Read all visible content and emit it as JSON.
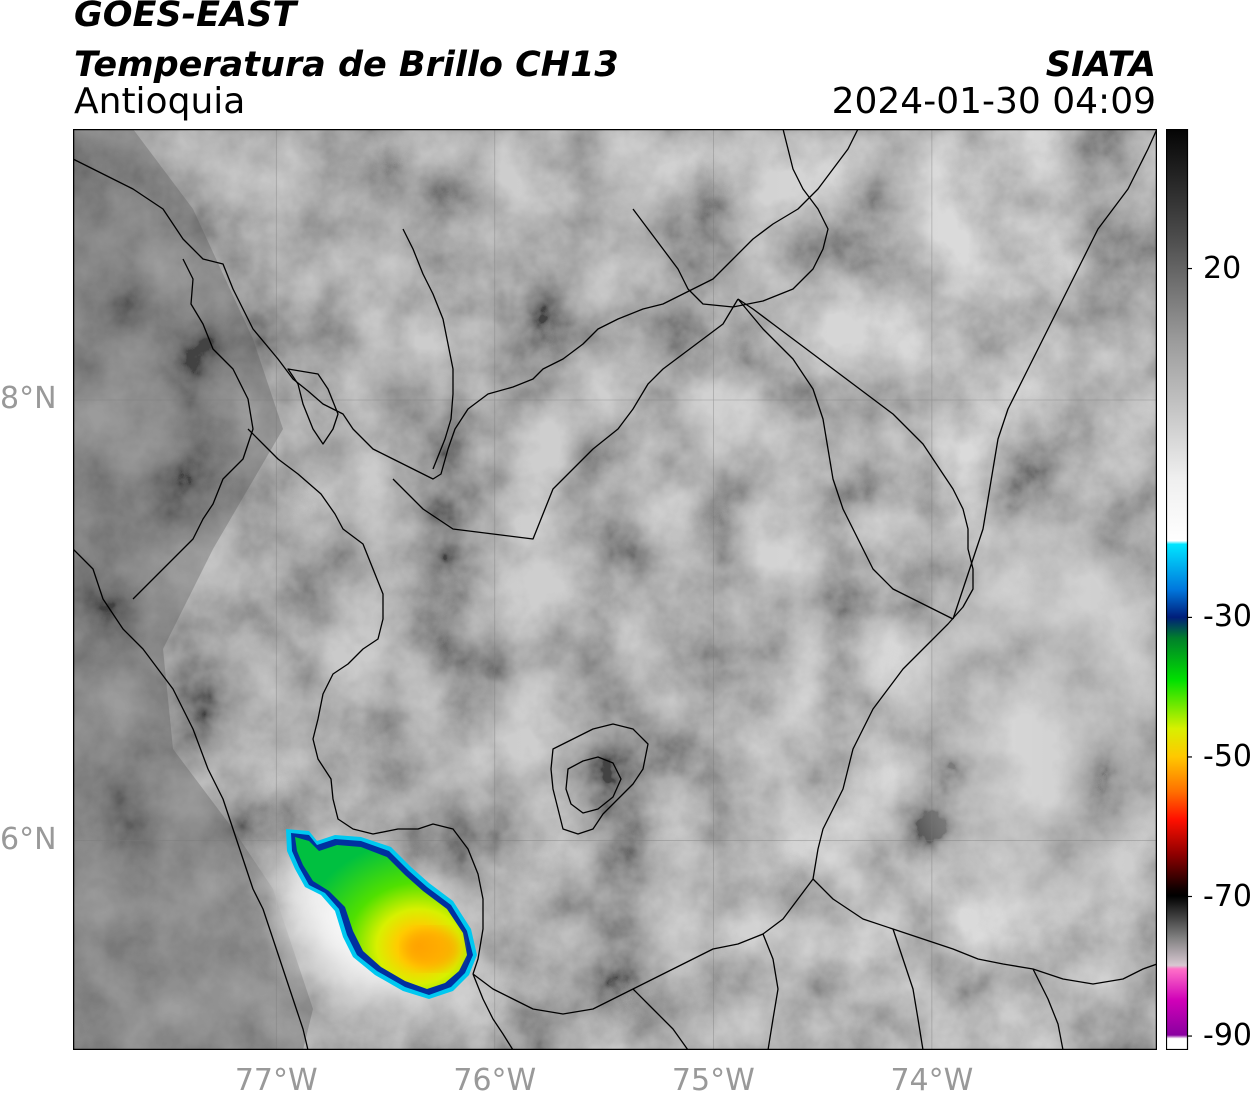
{
  "header": {
    "title_line1": "GOES-EAST",
    "title_line2": "Temperatura de Brillo CH13",
    "region": "Antioquia",
    "brand": "SIATA",
    "datetime": "2024-01-30 04:09"
  },
  "map": {
    "lat_ticks": [
      {
        "label": "8°N",
        "value": 8
      },
      {
        "label": "6°N",
        "value": 6
      }
    ],
    "lon_ticks": [
      {
        "label": "77°W",
        "value": -77
      },
      {
        "label": "76°W",
        "value": -76
      },
      {
        "label": "75°W",
        "value": -75
      },
      {
        "label": "74°W",
        "value": -74
      }
    ],
    "extent": {
      "lon_min": -77.93,
      "lon_max": -72.97,
      "lat_min": 5.05,
      "lat_max": 9.23
    },
    "cold_cloud_cell": {
      "center_lon": -76.45,
      "center_lat": 5.55,
      "min_temp_c": -52
    }
  },
  "colorbar": {
    "ticks": [
      {
        "label": "20",
        "value": 20
      },
      {
        "label": "-30",
        "value": -30
      },
      {
        "label": "-50",
        "value": -50
      },
      {
        "label": "-70",
        "value": -70
      },
      {
        "label": "-90",
        "value": -90
      }
    ],
    "range": [
      -92,
      40
    ],
    "stops": [
      {
        "value": 40,
        "color": "#050505"
      },
      {
        "value": 25,
        "color": "#4a4a4a"
      },
      {
        "value": 10,
        "color": "#9a9a9a"
      },
      {
        "value": -10,
        "color": "#efefef"
      },
      {
        "value": -19,
        "color": "#ffffff"
      },
      {
        "value": -19.5,
        "color": "#00e5ff"
      },
      {
        "value": -26,
        "color": "#0077dd"
      },
      {
        "value": -30,
        "color": "#001e7a"
      },
      {
        "value": -33,
        "color": "#00802a"
      },
      {
        "value": -39,
        "color": "#00e000"
      },
      {
        "value": -46,
        "color": "#d8f000"
      },
      {
        "value": -50,
        "color": "#ffc800"
      },
      {
        "value": -55,
        "color": "#ff7000"
      },
      {
        "value": -59,
        "color": "#ff1000"
      },
      {
        "value": -64,
        "color": "#900000"
      },
      {
        "value": -69,
        "color": "#100000"
      },
      {
        "value": -70,
        "color": "#000000"
      },
      {
        "value": -76,
        "color": "#808080"
      },
      {
        "value": -80,
        "color": "#d8c8d2"
      },
      {
        "value": -80.5,
        "color": "#ff70c8"
      },
      {
        "value": -85,
        "color": "#d000b8"
      },
      {
        "value": -90,
        "color": "#8a00a0"
      },
      {
        "value": -90.5,
        "color": "#ffffff"
      }
    ]
  }
}
